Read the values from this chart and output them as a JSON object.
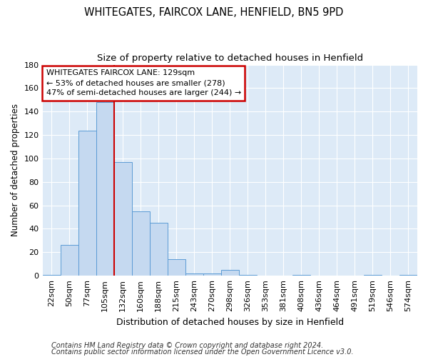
{
  "title1": "WHITEGATES, FAIRCOX LANE, HENFIELD, BN5 9PD",
  "title2": "Size of property relative to detached houses in Henfield",
  "xlabel": "Distribution of detached houses by size in Henfield",
  "ylabel": "Number of detached properties",
  "categories": [
    "22sqm",
    "50sqm",
    "77sqm",
    "105sqm",
    "132sqm",
    "160sqm",
    "188sqm",
    "215sqm",
    "243sqm",
    "270sqm",
    "298sqm",
    "326sqm",
    "353sqm",
    "381sqm",
    "408sqm",
    "436sqm",
    "464sqm",
    "491sqm",
    "519sqm",
    "546sqm",
    "574sqm"
  ],
  "values": [
    1,
    26,
    124,
    148,
    97,
    55,
    45,
    14,
    2,
    2,
    5,
    1,
    0,
    0,
    1,
    0,
    0,
    0,
    1,
    0,
    1
  ],
  "bar_color": "#c5d9f0",
  "bar_edge_color": "#5b9bd5",
  "reference_line_x": 3.5,
  "reference_line_label": "WHITEGATES FAIRCOX LANE: 129sqm",
  "annotation_line1": "← 53% of detached houses are smaller (278)",
  "annotation_line2": "47% of semi-detached houses are larger (244) →",
  "annotation_box_color": "#ffffff",
  "annotation_box_edge": "#cc0000",
  "reference_line_color": "#cc0000",
  "footer1": "Contains HM Land Registry data © Crown copyright and database right 2024.",
  "footer2": "Contains public sector information licensed under the Open Government Licence v3.0.",
  "ylim": [
    0,
    180
  ],
  "yticks": [
    0,
    20,
    40,
    60,
    80,
    100,
    120,
    140,
    160,
    180
  ],
  "background_color": "#ddeaf7",
  "grid_color": "#ffffff",
  "title_fontsize": 10.5,
  "subtitle_fontsize": 9.5,
  "ylabel_fontsize": 8.5,
  "xlabel_fontsize": 9,
  "tick_fontsize": 8,
  "footer_fontsize": 7,
  "ann_fontsize": 8
}
